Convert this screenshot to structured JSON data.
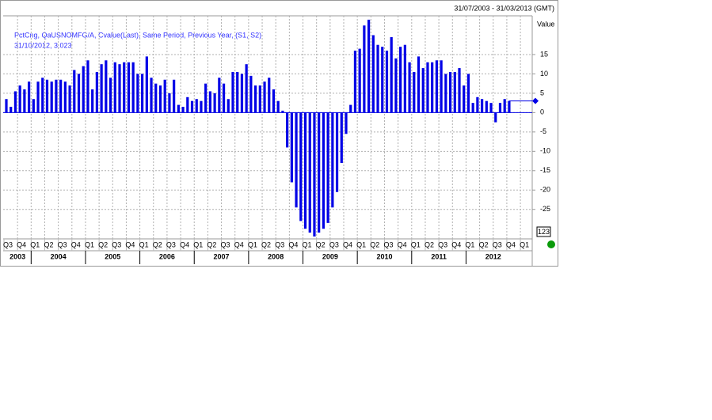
{
  "chart_data": {
    "type": "bar",
    "header": "31/07/2003 - 31/03/2013 (GMT)",
    "series": [
      {
        "name": "PctCng, QaUSNOMFG/A, Cvalue(Last), Same Period, Previous Year, (S1, S2)",
        "color": "#0000e6",
        "values": [
          3.5,
          1.5,
          5.5,
          7,
          6,
          8,
          3.5,
          8,
          9,
          8.5,
          8,
          8.5,
          8.5,
          8,
          7,
          11,
          10,
          12,
          13.5,
          6,
          10.5,
          12.5,
          13.5,
          9,
          13,
          12.5,
          13,
          13,
          13,
          10,
          10,
          14.5,
          9,
          7.5,
          7,
          8.5,
          5,
          8.5,
          2,
          1.5,
          4,
          3,
          3.5,
          3,
          7.5,
          5.5,
          5,
          9,
          7.5,
          3.5,
          10.5,
          10.5,
          10,
          12.5,
          9.5,
          7,
          7,
          8,
          9,
          6,
          3,
          0.5,
          -9,
          -18,
          -24.5,
          -28,
          -30,
          -31,
          -32,
          -31,
          -30,
          -28.5,
          -24.5,
          -20.5,
          -13,
          -5.5,
          2,
          16,
          16.5,
          22.5,
          24,
          20,
          17.5,
          17,
          16,
          19.5,
          14,
          17,
          17.5,
          13,
          10.5,
          14.5,
          11.5,
          13,
          13,
          13.5,
          13.5,
          10,
          10.5,
          10.5,
          11.5,
          7,
          10,
          2.5,
          4,
          3.5,
          3,
          2.5,
          -2.5,
          2.5,
          3.5,
          3.023
        ]
      }
    ],
    "last_point": {
      "label": "31/10/2012, 3.023",
      "value": 3.023
    },
    "y_axis_title": "Value",
    "badge": "123",
    "x_quarter_labels": [
      "Q3",
      "Q4",
      "Q1",
      "Q2",
      "Q3",
      "Q4",
      "Q1",
      "Q2",
      "Q3",
      "Q4",
      "Q1",
      "Q2",
      "Q3",
      "Q4",
      "Q1",
      "Q2",
      "Q3",
      "Q4",
      "Q1",
      "Q2",
      "Q3",
      "Q4",
      "Q1",
      "Q2",
      "Q3",
      "Q4",
      "Q1",
      "Q2",
      "Q3",
      "Q4",
      "Q1",
      "Q2",
      "Q3",
      "Q4",
      "Q1",
      "Q2",
      "Q3",
      "Q4",
      "Q1"
    ],
    "x_year_labels": [
      "2003",
      "2004",
      "2005",
      "2006",
      "2007",
      "2008",
      "2009",
      "2010",
      "2011",
      "2012"
    ],
    "ylim": [
      -32,
      25
    ],
    "yticks": [
      -25,
      -20,
      -15,
      -10,
      -5,
      0,
      5,
      10,
      15
    ],
    "grid": true
  }
}
